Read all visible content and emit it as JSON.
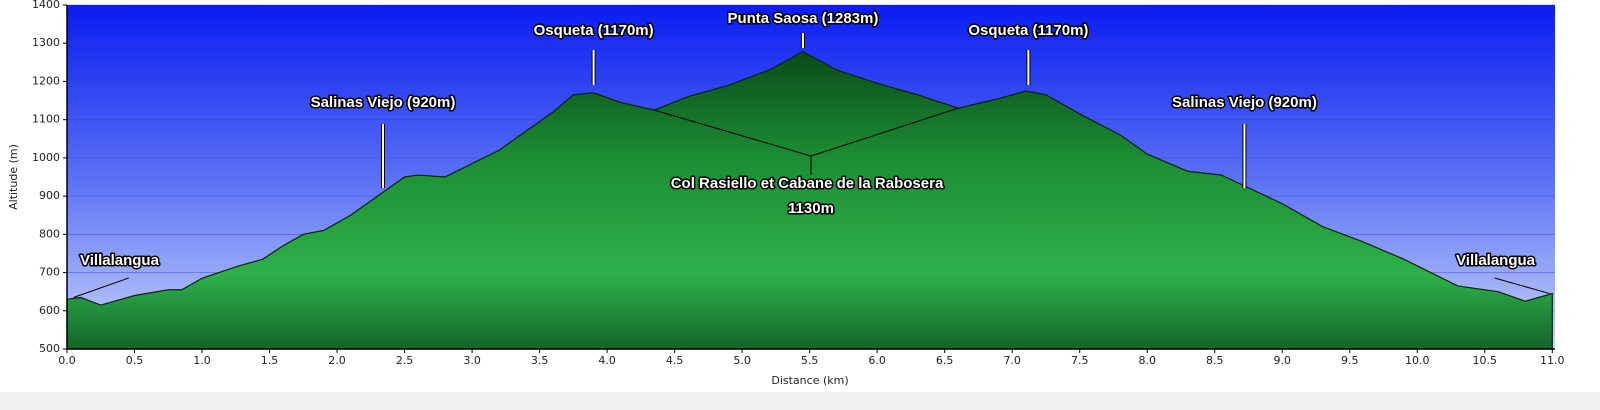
{
  "chart_data": {
    "type": "area",
    "xlabel": "Distance   (km)",
    "ylabel": "Altitude (m)",
    "color": "#1f9b3b",
    "x": [
      0.0,
      0.1,
      0.25,
      0.5,
      0.75,
      0.85,
      1.0,
      1.25,
      1.45,
      1.6,
      1.75,
      1.9,
      2.1,
      2.3,
      2.5,
      2.6,
      2.8,
      3.0,
      3.2,
      3.4,
      3.6,
      3.75,
      3.9,
      4.1,
      4.35,
      4.6,
      4.9,
      5.2,
      5.45,
      5.7,
      6.0,
      6.3,
      6.6,
      6.9,
      7.1,
      7.25,
      7.5,
      7.8,
      8.0,
      8.3,
      8.55,
      8.7,
      9.0,
      9.3,
      9.6,
      9.9,
      10.1,
      10.3,
      10.6,
      10.8,
      11.0
    ],
    "values": [
      630,
      635,
      615,
      640,
      655,
      655,
      685,
      715,
      735,
      770,
      800,
      810,
      850,
      900,
      950,
      955,
      950,
      985,
      1020,
      1070,
      1120,
      1165,
      1170,
      1145,
      1125,
      1160,
      1190,
      1230,
      1278,
      1230,
      1195,
      1165,
      1130,
      1155,
      1175,
      1165,
      1115,
      1060,
      1010,
      965,
      955,
      930,
      880,
      820,
      780,
      735,
      700,
      665,
      650,
      625,
      645
    ],
    "xlim": [
      0,
      11.02
    ],
    "ylim": [
      500,
      1400
    ],
    "xticks": [
      {
        "value": 0,
        "label": "0.0"
      },
      0.5,
      {
        "value": 1,
        "label": "1.0"
      },
      1.5,
      {
        "value": 2,
        "label": "2.0"
      },
      2.5,
      {
        "value": 3,
        "label": "3.0"
      },
      3.5,
      {
        "value": 4,
        "label": "4.0"
      },
      4.5,
      {
        "value": 5,
        "label": "5.0"
      },
      5.5,
      {
        "value": 6,
        "label": "6.0"
      },
      6.5,
      {
        "value": 7,
        "label": "7.0"
      },
      7.5,
      {
        "value": 8,
        "label": "8.0"
      },
      8.5,
      {
        "value": 9,
        "label": "9.0"
      },
      9.5,
      {
        "value": 10,
        "label": "10.0"
      },
      10.5,
      {
        "value": 11,
        "label": "11.0"
      }
    ],
    "yticks": [
      500,
      600,
      700,
      800,
      900,
      1000,
      1100,
      1200,
      1300,
      1400
    ],
    "grid": true,
    "annotations": [
      {
        "text": "Villalangua",
        "x": 0.05,
        "y": 635
      },
      {
        "text": "Salinas Viejo (920m)",
        "x": 2.34,
        "y": 920
      },
      {
        "text": "Osqueta (1170m)",
        "x": 3.9,
        "y": 1170
      },
      {
        "text": "Punta Saosa (1283m)",
        "x": 5.45,
        "y": 1278
      },
      {
        "text": "Osqueta (1170m)",
        "x": 7.12,
        "y": 1175
      },
      {
        "text": "Salinas Viejo (920m)",
        "x": 8.72,
        "y": 920
      },
      {
        "text": "Villalangua",
        "x": 10.98,
        "y": 645
      },
      {
        "text": "Col Rasiello et Cabane de la Rabosera",
        "text2": "1130m",
        "x": 4.35,
        "y": 1125,
        "x2": 6.6,
        "y2": 1130
      }
    ]
  }
}
